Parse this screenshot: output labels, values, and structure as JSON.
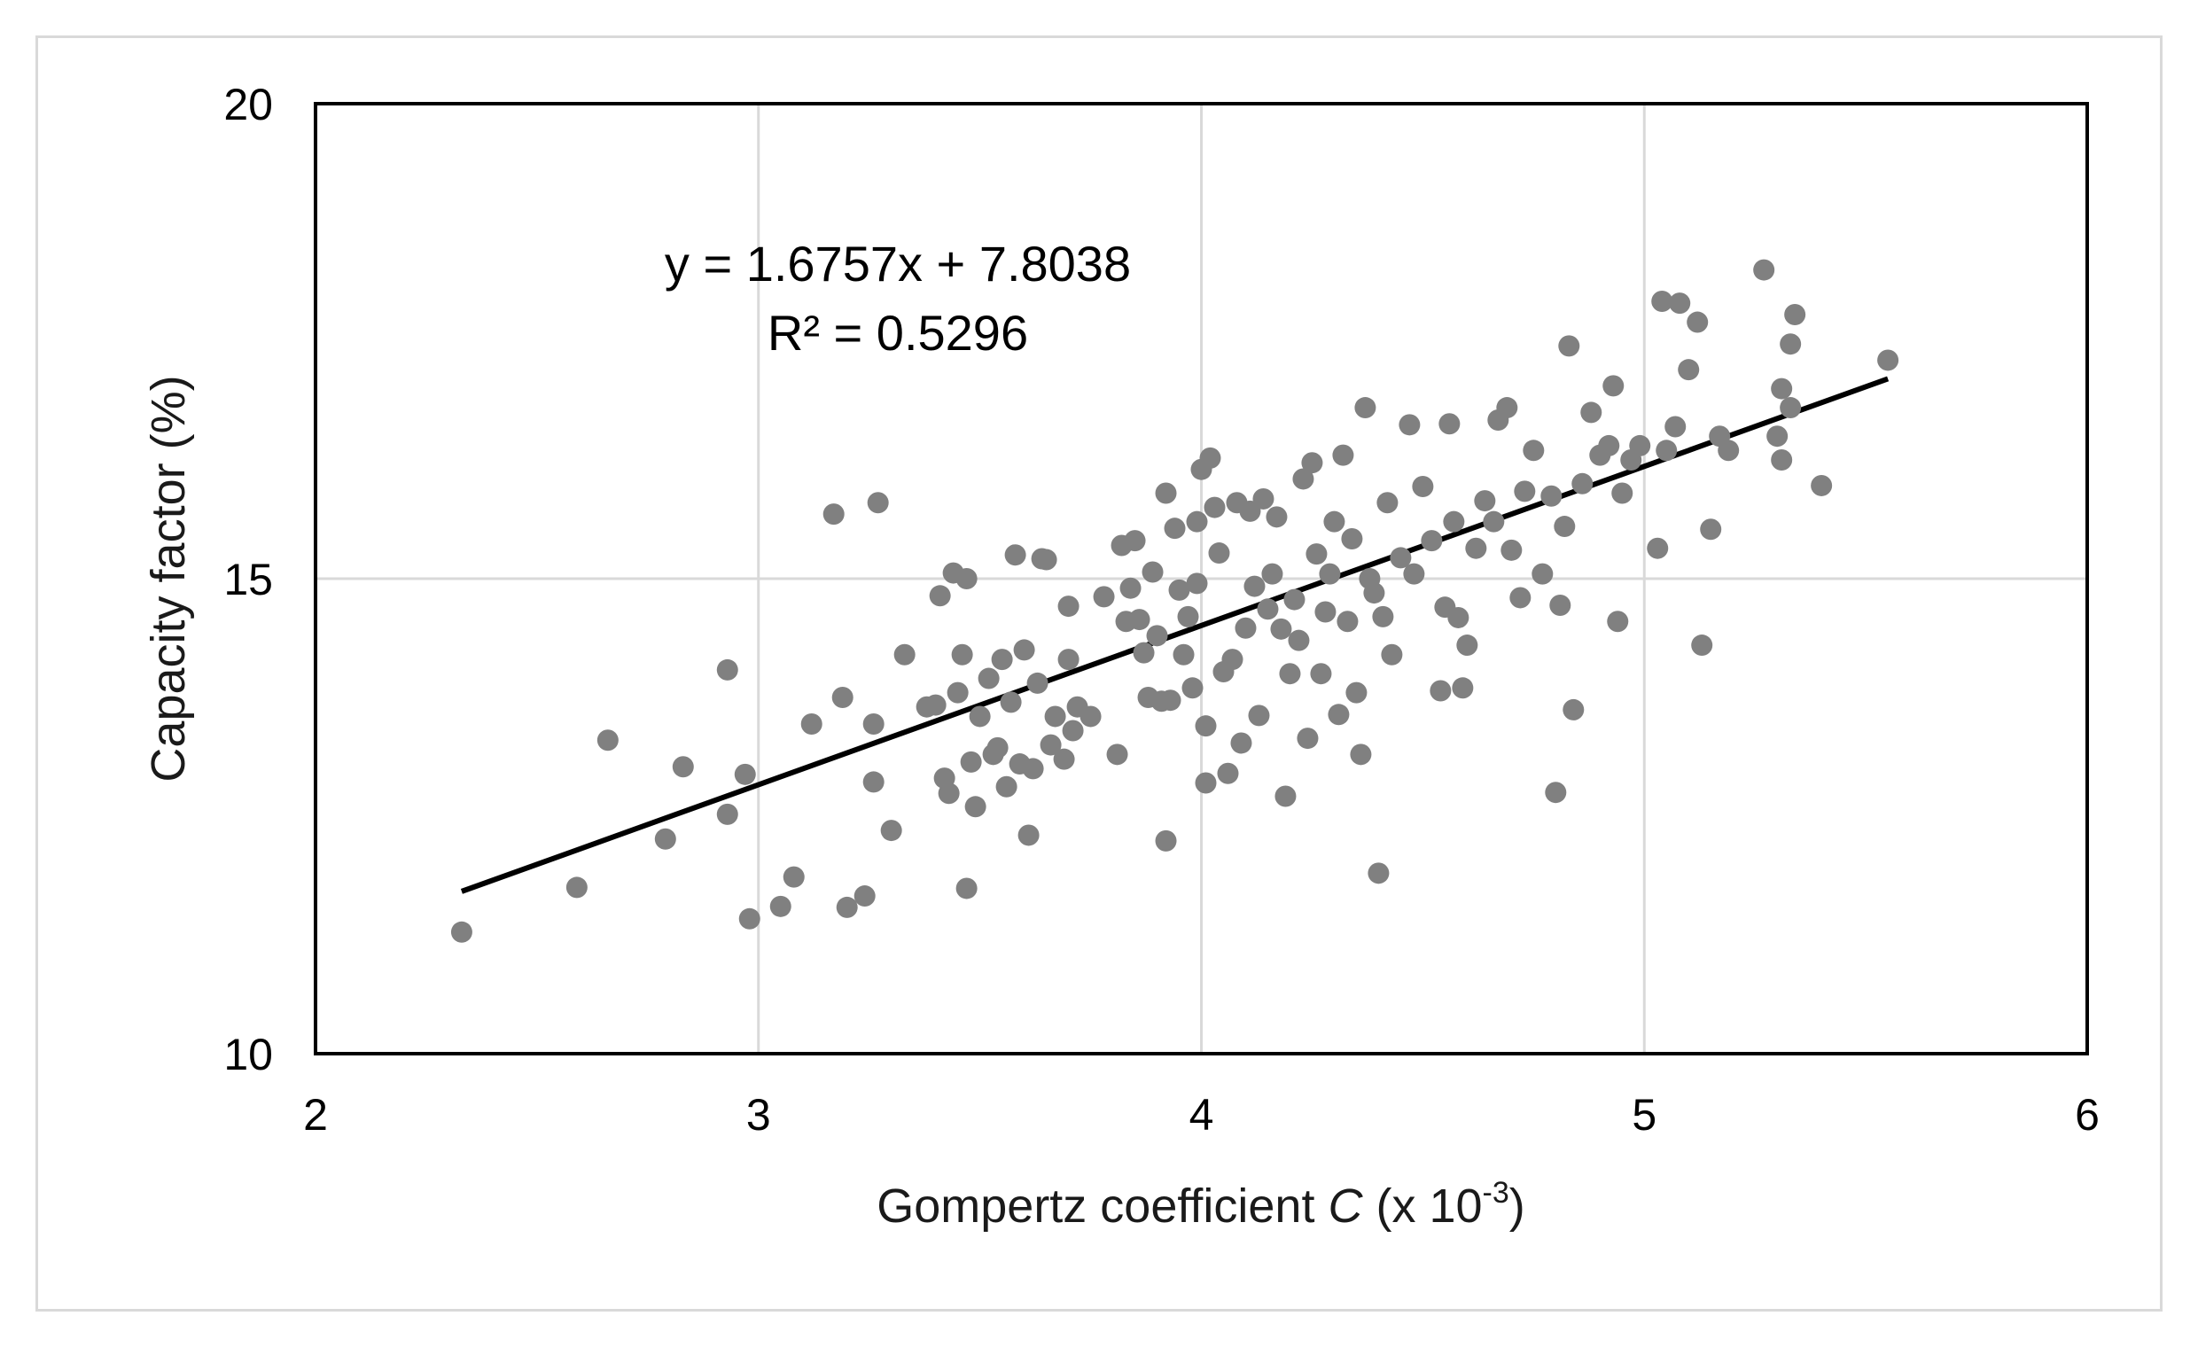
{
  "chart_data": {
    "type": "scatter",
    "title": "",
    "xlabel": {
      "prefix": "Gompertz coefficient ",
      "variable": "C",
      "suffix": " (x 10",
      "exponent": "-3",
      "close": ")"
    },
    "ylabel": "Capacity factor (%)",
    "xlim": [
      2,
      6
    ],
    "ylim": [
      10,
      20
    ],
    "x_ticks": [
      2,
      3,
      4,
      5,
      6
    ],
    "y_ticks": [
      10,
      15,
      20
    ],
    "grid": true,
    "legend": "none",
    "colors": {
      "points": "#808080",
      "trendline": "#000000",
      "grid": "#d9d9d9",
      "axes": "#000000"
    },
    "trendline": {
      "slope": 1.6757,
      "intercept": 7.8038,
      "x_range": [
        2.33,
        5.55
      ],
      "equation_text": "y = 1.6757x + 7.8038",
      "r2_text": "R² = 0.5296"
    },
    "series": [
      {
        "points": [
          [
            2.33,
            11.28
          ],
          [
            2.59,
            11.75
          ],
          [
            2.66,
            13.3
          ],
          [
            2.79,
            12.26
          ],
          [
            2.83,
            13.02
          ],
          [
            2.93,
            14.04
          ],
          [
            2.93,
            12.52
          ],
          [
            2.97,
            12.94
          ],
          [
            2.98,
            11.42
          ],
          [
            3.05,
            11.55
          ],
          [
            3.08,
            11.86
          ],
          [
            3.12,
            13.47
          ],
          [
            3.17,
            15.68
          ],
          [
            3.19,
            13.75
          ],
          [
            3.2,
            11.54
          ],
          [
            3.24,
            11.66
          ],
          [
            3.26,
            13.47
          ],
          [
            3.26,
            12.86
          ],
          [
            3.27,
            15.8
          ],
          [
            3.3,
            12.35
          ],
          [
            3.33,
            14.2
          ],
          [
            3.38,
            13.65
          ],
          [
            3.4,
            13.67
          ],
          [
            3.41,
            14.82
          ],
          [
            3.42,
            12.9
          ],
          [
            3.43,
            12.74
          ],
          [
            3.44,
            15.06
          ],
          [
            3.45,
            13.8
          ],
          [
            3.46,
            14.2
          ],
          [
            3.47,
            15.0
          ],
          [
            3.47,
            11.74
          ],
          [
            3.48,
            13.07
          ],
          [
            3.49,
            12.6
          ],
          [
            3.5,
            13.55
          ],
          [
            3.52,
            13.95
          ],
          [
            3.53,
            13.15
          ],
          [
            3.54,
            13.22
          ],
          [
            3.55,
            14.15
          ],
          [
            3.56,
            12.81
          ],
          [
            3.57,
            13.7
          ],
          [
            3.58,
            15.25
          ],
          [
            3.59,
            13.05
          ],
          [
            3.6,
            14.25
          ],
          [
            3.61,
            12.3
          ],
          [
            3.62,
            13.0
          ],
          [
            3.63,
            13.9
          ],
          [
            3.64,
            15.21
          ],
          [
            3.65,
            15.2
          ],
          [
            3.66,
            13.25
          ],
          [
            3.67,
            13.55
          ],
          [
            3.69,
            13.1
          ],
          [
            3.7,
            14.15
          ],
          [
            3.7,
            14.71
          ],
          [
            3.71,
            13.4
          ],
          [
            3.72,
            13.65
          ],
          [
            3.75,
            13.55
          ],
          [
            3.78,
            14.81
          ],
          [
            3.81,
            13.15
          ],
          [
            3.82,
            15.35
          ],
          [
            3.83,
            14.55
          ],
          [
            3.84,
            14.9
          ],
          [
            3.85,
            15.4
          ],
          [
            3.86,
            14.57
          ],
          [
            3.87,
            14.22
          ],
          [
            3.88,
            13.75
          ],
          [
            3.89,
            15.07
          ],
          [
            3.9,
            14.4
          ],
          [
            3.91,
            13.71
          ],
          [
            3.92,
            12.24
          ],
          [
            3.92,
            15.9
          ],
          [
            3.93,
            13.72
          ],
          [
            3.94,
            15.53
          ],
          [
            3.95,
            14.88
          ],
          [
            3.96,
            14.2
          ],
          [
            3.97,
            14.6
          ],
          [
            3.98,
            13.85
          ],
          [
            3.99,
            15.6
          ],
          [
            3.99,
            14.95
          ],
          [
            4.0,
            16.15
          ],
          [
            4.01,
            13.45
          ],
          [
            4.01,
            12.85
          ],
          [
            4.02,
            16.27
          ],
          [
            4.03,
            15.75
          ],
          [
            4.04,
            15.27
          ],
          [
            4.05,
            14.02
          ],
          [
            4.06,
            12.95
          ],
          [
            4.07,
            14.15
          ],
          [
            4.08,
            15.8
          ],
          [
            4.09,
            13.27
          ],
          [
            4.1,
            14.48
          ],
          [
            4.11,
            15.71
          ],
          [
            4.12,
            14.92
          ],
          [
            4.13,
            13.56
          ],
          [
            4.14,
            15.84
          ],
          [
            4.15,
            14.68
          ],
          [
            4.16,
            15.05
          ],
          [
            4.17,
            15.65
          ],
          [
            4.18,
            14.47
          ],
          [
            4.19,
            12.71
          ],
          [
            4.2,
            14.0
          ],
          [
            4.21,
            14.78
          ],
          [
            4.22,
            14.35
          ],
          [
            4.23,
            16.05
          ],
          [
            4.24,
            13.32
          ],
          [
            4.25,
            16.22
          ],
          [
            4.26,
            15.26
          ],
          [
            4.27,
            14.0
          ],
          [
            4.28,
            14.65
          ],
          [
            4.29,
            15.05
          ],
          [
            4.3,
            15.6
          ],
          [
            4.31,
            13.57
          ],
          [
            4.32,
            16.3
          ],
          [
            4.33,
            14.55
          ],
          [
            4.34,
            15.42
          ],
          [
            4.35,
            13.8
          ],
          [
            4.36,
            13.15
          ],
          [
            4.37,
            16.8
          ],
          [
            4.38,
            15.0
          ],
          [
            4.39,
            14.85
          ],
          [
            4.4,
            11.9
          ],
          [
            4.41,
            14.6
          ],
          [
            4.42,
            15.8
          ],
          [
            4.43,
            14.2
          ],
          [
            4.45,
            15.22
          ],
          [
            4.47,
            16.62
          ],
          [
            4.48,
            15.05
          ],
          [
            4.5,
            15.97
          ],
          [
            4.52,
            15.4
          ],
          [
            4.54,
            13.82
          ],
          [
            4.55,
            14.7
          ],
          [
            4.56,
            16.63
          ],
          [
            4.57,
            15.6
          ],
          [
            4.58,
            14.59
          ],
          [
            4.59,
            13.85
          ],
          [
            4.6,
            14.3
          ],
          [
            4.62,
            15.32
          ],
          [
            4.64,
            15.82
          ],
          [
            4.66,
            15.6
          ],
          [
            4.67,
            16.67
          ],
          [
            4.69,
            16.8
          ],
          [
            4.7,
            15.3
          ],
          [
            4.72,
            14.8
          ],
          [
            4.73,
            15.92
          ],
          [
            4.75,
            16.35
          ],
          [
            4.77,
            15.05
          ],
          [
            4.79,
            15.87
          ],
          [
            4.8,
            12.75
          ],
          [
            4.81,
            14.72
          ],
          [
            4.82,
            15.55
          ],
          [
            4.83,
            17.45
          ],
          [
            4.84,
            13.62
          ],
          [
            4.86,
            16.0
          ],
          [
            4.88,
            16.75
          ],
          [
            4.9,
            16.3
          ],
          [
            4.92,
            16.4
          ],
          [
            4.93,
            17.03
          ],
          [
            4.94,
            14.55
          ],
          [
            4.95,
            15.9
          ],
          [
            4.97,
            16.25
          ],
          [
            4.99,
            16.4
          ],
          [
            5.03,
            15.32
          ],
          [
            5.04,
            17.92
          ],
          [
            5.05,
            16.35
          ],
          [
            5.07,
            16.6
          ],
          [
            5.08,
            17.9
          ],
          [
            5.1,
            17.2
          ],
          [
            5.12,
            17.7
          ],
          [
            5.13,
            14.3
          ],
          [
            5.15,
            15.52
          ],
          [
            5.17,
            16.5
          ],
          [
            5.19,
            16.35
          ],
          [
            5.27,
            18.25
          ],
          [
            5.3,
            16.5
          ],
          [
            5.31,
            16.25
          ],
          [
            5.31,
            17.0
          ],
          [
            5.33,
            17.47
          ],
          [
            5.33,
            16.8
          ],
          [
            5.34,
            17.78
          ],
          [
            5.4,
            15.98
          ],
          [
            5.55,
            17.3
          ]
        ]
      }
    ]
  }
}
